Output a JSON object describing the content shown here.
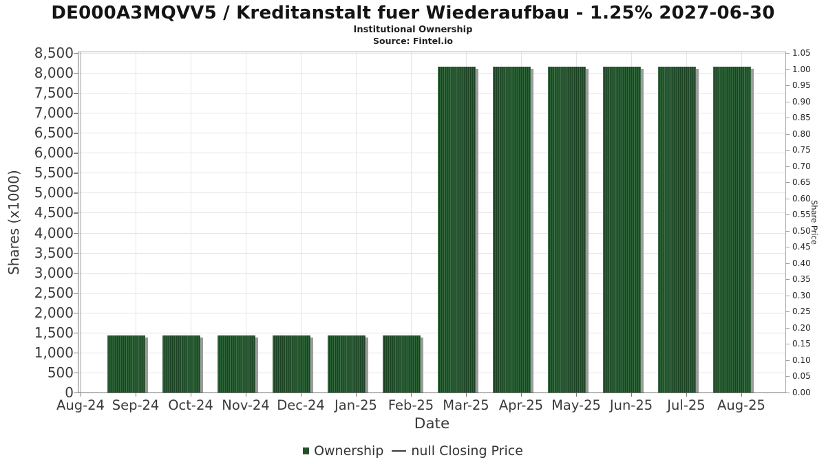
{
  "header": {
    "title": "DE000A3MQVV5 / Kreditanstalt fuer Wiederaufbau - 1.25% 2027-06-30",
    "subtitle": "Institutional Ownership",
    "source": "Source: Fintel.io"
  },
  "legend": {
    "items": [
      {
        "label": "Ownership",
        "marker_icon": "green-square-icon"
      },
      {
        "label": "null Closing Price",
        "marker_icon": "line-dash-icon"
      }
    ]
  },
  "chart_data": {
    "type": "bar",
    "title": "Institutional Ownership",
    "xlabel": "Date",
    "ylabel_left": "Shares (x1000)",
    "ylabel_right": "Share Price",
    "categories": [
      "Aug-24",
      "Sep-24",
      "Oct-24",
      "Nov-24",
      "Dec-24",
      "Jan-25",
      "Feb-25",
      "Mar-25",
      "Apr-25",
      "May-25",
      "Jun-25",
      "Jul-25",
      "Aug-25"
    ],
    "series": [
      {
        "name": "Ownership",
        "type": "bar",
        "axis": "left",
        "values": [
          null,
          1430,
          1430,
          1430,
          1430,
          1430,
          1430,
          8150,
          8150,
          8150,
          8150,
          8150,
          8150
        ]
      },
      {
        "name": "null Closing Price",
        "type": "line",
        "axis": "right",
        "values": []
      }
    ],
    "ylim_left": [
      0,
      8500
    ],
    "ytick_step_left": 500,
    "yticks_left": [
      "0",
      "500",
      "1,000",
      "1,500",
      "2,000",
      "2,500",
      "3,000",
      "3,500",
      "4,000",
      "4,500",
      "5,000",
      "5,500",
      "6,000",
      "6,500",
      "7,000",
      "7,500",
      "8,000",
      "8,500"
    ],
    "ylim_right": [
      0,
      1.05
    ],
    "ytick_step_right": 0.05,
    "yticks_right": [
      "0.00",
      "0.05",
      "0.10",
      "0.15",
      "0.20",
      "0.25",
      "0.30",
      "0.35",
      "0.40",
      "0.45",
      "0.50",
      "0.55",
      "0.60",
      "0.65",
      "0.70",
      "0.75",
      "0.80",
      "0.85",
      "0.90",
      "0.95",
      "1.00",
      "1.05"
    ],
    "grid": true,
    "legend_position": "bottom",
    "colors": {
      "bar": "#2b5e35",
      "bar_hatch": "#1a4122",
      "bar_shadow": "#9b9b9b",
      "grid": "#e4e4e4",
      "legend_swatch": "#23512c"
    }
  }
}
